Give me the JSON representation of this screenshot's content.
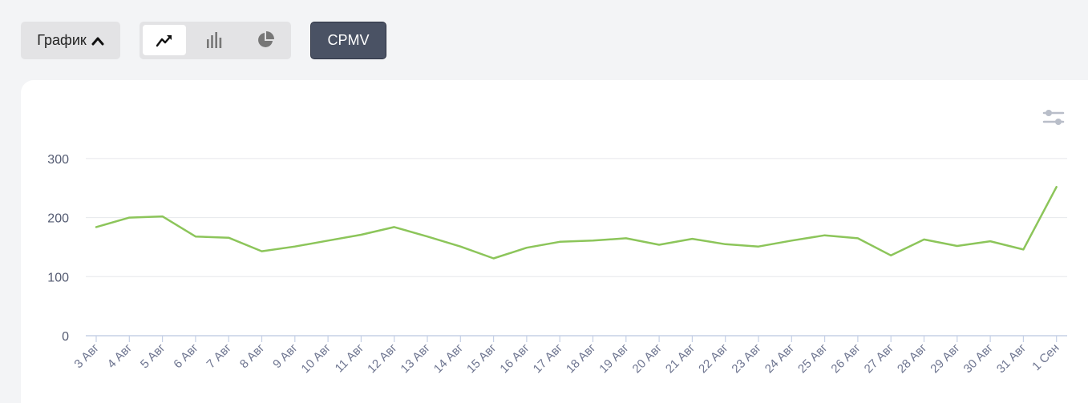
{
  "toolbar": {
    "grafik_label": "График",
    "cpmv_label": "CPMV",
    "chart_types": [
      {
        "icon": "line-chart-icon",
        "active": true
      },
      {
        "icon": "bar-chart-icon",
        "active": false
      },
      {
        "icon": "pie-chart-icon",
        "active": false
      }
    ]
  },
  "colors": {
    "series": "#8cc55a",
    "grid": "#e6e8ec",
    "axis": "#c5d0e6",
    "cpmv_bg": "#4a5264"
  },
  "chart_data": {
    "type": "line",
    "title": "",
    "xlabel": "",
    "ylabel": "",
    "ylim": [
      0,
      300
    ],
    "yticks": [
      0,
      100,
      200,
      300
    ],
    "grid": true,
    "categories": [
      "3 Авг",
      "4 Авг",
      "5 Авг",
      "6 Авг",
      "7 Авг",
      "8 Авг",
      "9 Авг",
      "10 Авг",
      "11 Авг",
      "12 Авг",
      "13 Авг",
      "14 Авг",
      "15 Авг",
      "16 Авг",
      "17 Авг",
      "18 Авг",
      "19 Авг",
      "20 Авг",
      "21 Авг",
      "22 Авг",
      "23 Авг",
      "24 Авг",
      "25 Авг",
      "26 Авг",
      "27 Авг",
      "28 Авг",
      "29 Авг",
      "30 Авг",
      "31 Авг",
      "1 Сен"
    ],
    "series": [
      {
        "values": [
          184,
          200,
          202,
          168,
          166,
          143,
          151,
          161,
          171,
          184,
          168,
          151,
          131,
          149,
          159,
          161,
          165,
          154,
          164,
          155,
          151,
          161,
          170,
          165,
          136,
          163,
          152,
          160,
          146,
          252
        ]
      }
    ]
  }
}
